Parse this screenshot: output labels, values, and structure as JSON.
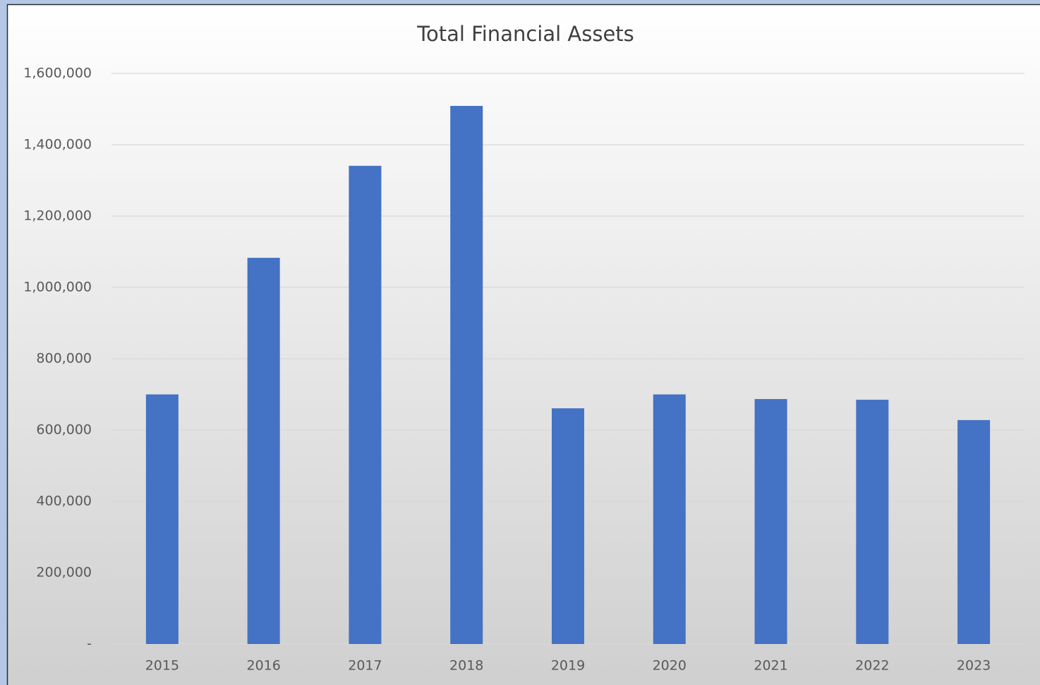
{
  "chart_data": {
    "type": "bar",
    "title": "Total Financial Assets",
    "categories": [
      "2015",
      "2016",
      "2017",
      "2018",
      "2019",
      "2020",
      "2021",
      "2022",
      "2023"
    ],
    "values": [
      700000,
      1083000,
      1341000,
      1509000,
      661000,
      700000,
      687000,
      685000,
      628000
    ],
    "color": "#4472c4",
    "ylim": [
      0,
      1600000
    ],
    "yticks": [
      {
        "value": 0,
        "label": "-"
      },
      {
        "value": 200000,
        "label": "200,000"
      },
      {
        "value": 400000,
        "label": "400,000"
      },
      {
        "value": 600000,
        "label": "600,000"
      },
      {
        "value": 800000,
        "label": "800,000"
      },
      {
        "value": 1000000,
        "label": "1,000,000"
      },
      {
        "value": 1200000,
        "label": "1,200,000"
      },
      {
        "value": 1400000,
        "label": "1,400,000"
      },
      {
        "value": 1600000,
        "label": "1,600,000"
      }
    ],
    "grid": true
  }
}
